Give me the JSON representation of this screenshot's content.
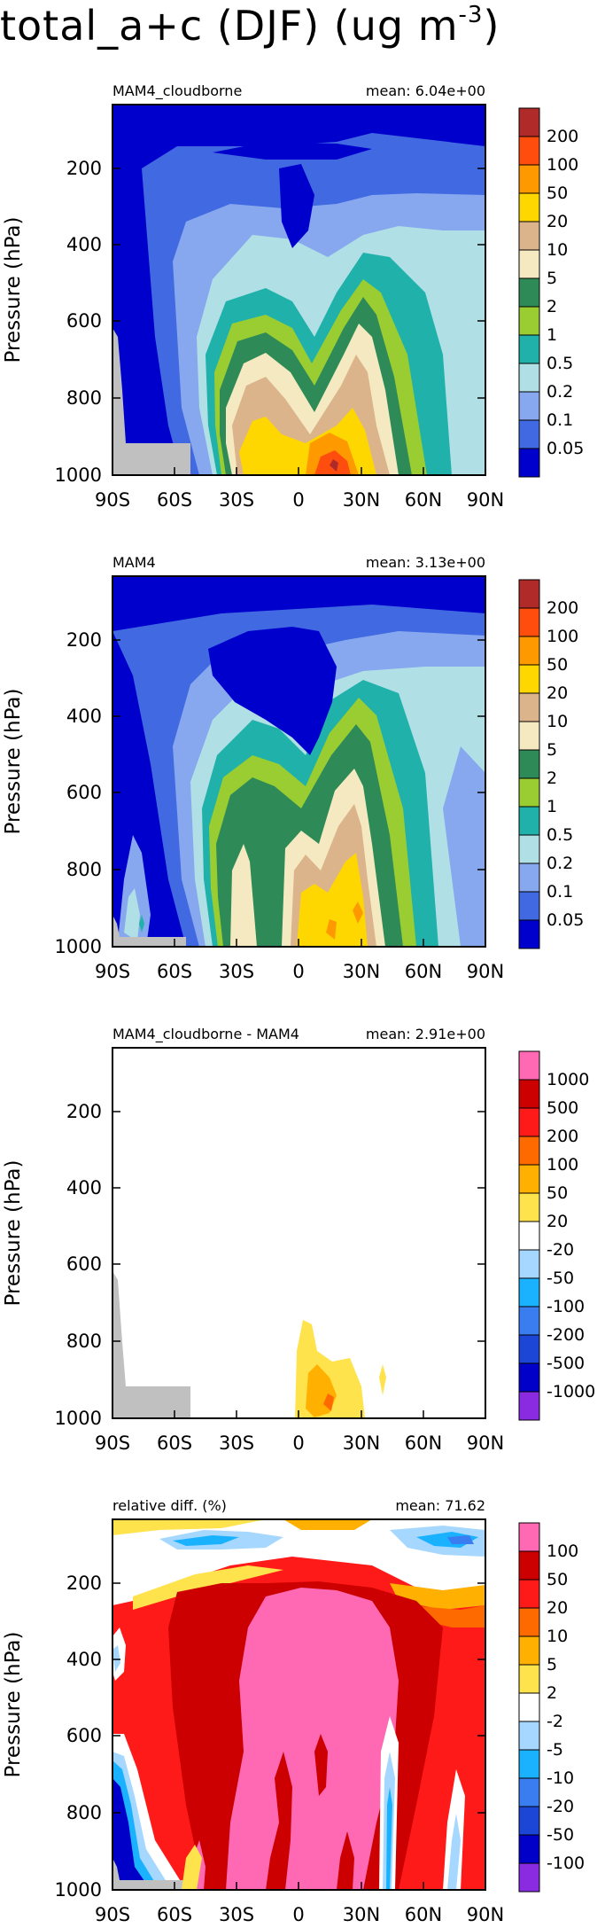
{
  "figure_title": "total_a+c (DJF) (ug m",
  "figure_title_exp": "-3",
  "figure_title_close": ")",
  "chart_data": [
    {
      "type": "contour",
      "title": "MAM4_cloudborne",
      "stat": "mean:  6.04e+00",
      "xlabel": "",
      "ylabel": "Pressure (hPa)",
      "xticks": [
        "90S",
        "60S",
        "30S",
        "0",
        "30N",
        "60N",
        "90N"
      ],
      "xtick_values": [
        -90,
        -60,
        -30,
        0,
        30,
        60,
        90
      ],
      "yticks": [
        "200",
        "400",
        "600",
        "800",
        "1000"
      ],
      "ytick_values": [
        200,
        400,
        600,
        800,
        1000
      ],
      "xlim": [
        -90,
        90
      ],
      "ylim": [
        1000,
        20
      ],
      "colorbar_labels": [
        "200",
        "100",
        "50",
        "20",
        "10",
        "5",
        "2",
        "1",
        "0.5",
        "0.2",
        "0.1",
        "0.05"
      ],
      "colorbar_colors": [
        "#b02a2a",
        "#ff4d0d",
        "#ff9900",
        "#ffd700",
        "#dcb48c",
        "#f5e9c1",
        "#2e8b57",
        "#9acd32",
        "#20b2aa",
        "#b0e0e6",
        "#87a8ee",
        "#4169e1",
        "#0000cd"
      ],
      "max_region": "lower troposphere 0-30N, up to >100"
    },
    {
      "type": "contour",
      "title": "MAM4",
      "stat": "mean:  3.13e+00",
      "xlabel": "",
      "ylabel": "Pressure (hPa)",
      "xticks": [
        "90S",
        "60S",
        "30S",
        "0",
        "30N",
        "60N",
        "90N"
      ],
      "xtick_values": [
        -90,
        -60,
        -30,
        0,
        30,
        60,
        90
      ],
      "yticks": [
        "200",
        "400",
        "600",
        "800",
        "1000"
      ],
      "ytick_values": [
        200,
        400,
        600,
        800,
        1000
      ],
      "xlim": [
        -90,
        90
      ],
      "ylim": [
        1000,
        20
      ],
      "colorbar_labels": [
        "200",
        "100",
        "50",
        "20",
        "10",
        "5",
        "2",
        "1",
        "0.5",
        "0.2",
        "0.1",
        "0.05"
      ],
      "colorbar_colors": [
        "#b02a2a",
        "#ff4d0d",
        "#ff9900",
        "#ffd700",
        "#dcb48c",
        "#f5e9c1",
        "#2e8b57",
        "#9acd32",
        "#20b2aa",
        "#b0e0e6",
        "#87a8ee",
        "#4169e1",
        "#0000cd"
      ]
    },
    {
      "type": "contour",
      "title": "MAM4_cloudborne - MAM4",
      "stat": "mean:  2.91e+00",
      "xlabel": "",
      "ylabel": "Pressure (hPa)",
      "xticks": [
        "90S",
        "60S",
        "30S",
        "0",
        "30N",
        "60N",
        "90N"
      ],
      "xtick_values": [
        -90,
        -60,
        -30,
        0,
        30,
        60,
        90
      ],
      "yticks": [
        "200",
        "400",
        "600",
        "800",
        "1000"
      ],
      "ytick_values": [
        200,
        400,
        600,
        800,
        1000
      ],
      "xlim": [
        -90,
        90
      ],
      "ylim": [
        1000,
        20
      ],
      "colorbar_labels": [
        "1000",
        "500",
        "200",
        "100",
        "50",
        "20",
        "-20",
        "-50",
        "-100",
        "-200",
        "-500",
        "-1000"
      ],
      "colorbar_colors": [
        "#ff69b4",
        "#cc0000",
        "#ff1a1a",
        "#ff6a00",
        "#ffb000",
        "#ffe34d",
        "#ffffff",
        "#a6d8ff",
        "#1ab2ff",
        "#3a7df0",
        "#1c46d6",
        "#0000c8",
        "#8a2be2"
      ]
    },
    {
      "type": "contour",
      "title": "relative diff. (%)",
      "stat": "mean: 71.62",
      "xlabel": "",
      "ylabel": "Pressure (hPa)",
      "xticks": [
        "90S",
        "60S",
        "30S",
        "0",
        "30N",
        "60N",
        "90N"
      ],
      "xtick_values": [
        -90,
        -60,
        -30,
        0,
        30,
        60,
        90
      ],
      "yticks": [
        "200",
        "400",
        "600",
        "800",
        "1000"
      ],
      "ytick_values": [
        200,
        400,
        600,
        800,
        1000
      ],
      "xlim": [
        -90,
        90
      ],
      "ylim": [
        1000,
        20
      ],
      "colorbar_labels": [
        "100",
        "50",
        "20",
        "10",
        "5",
        "2",
        "-2",
        "-5",
        "-10",
        "-20",
        "-50",
        "-100"
      ],
      "colorbar_colors": [
        "#ff69b4",
        "#cc0000",
        "#ff1a1a",
        "#ff6a00",
        "#ffb000",
        "#ffe34d",
        "#ffffff",
        "#a6d8ff",
        "#1ab2ff",
        "#3a7df0",
        "#1c46d6",
        "#0000c8",
        "#8a2be2"
      ]
    }
  ]
}
